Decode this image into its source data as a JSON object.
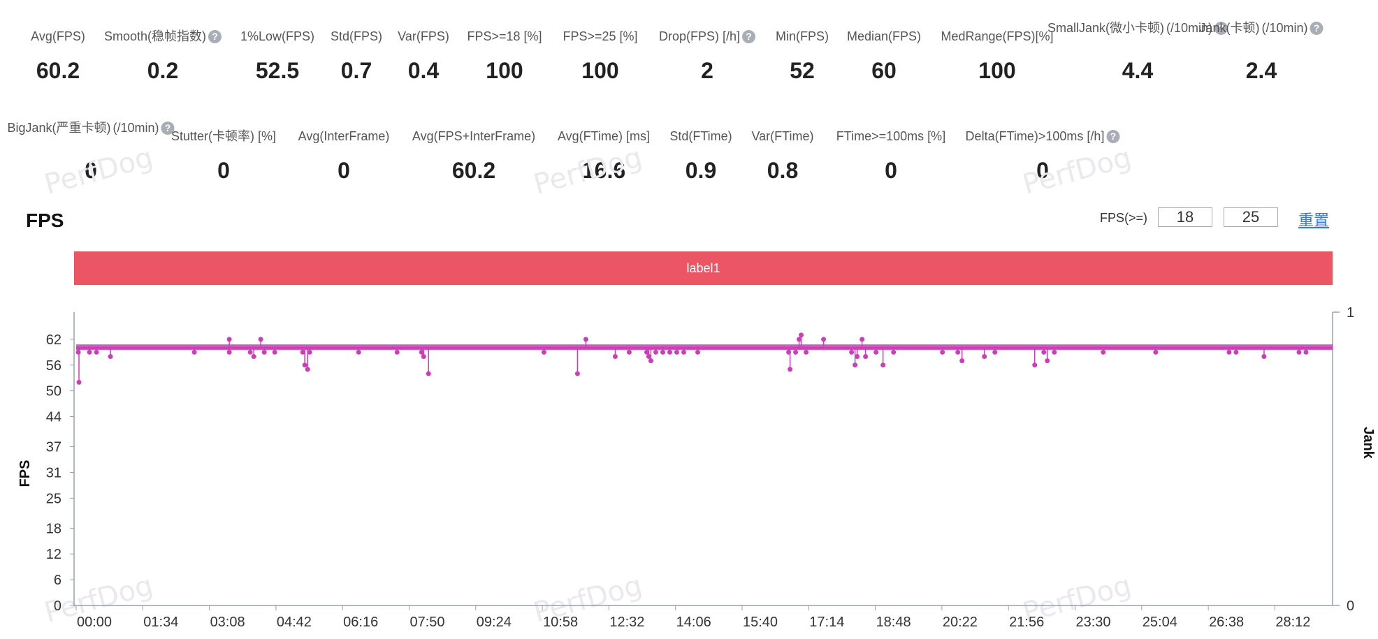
{
  "metrics_row1": [
    {
      "label": "Avg(FPS)",
      "value": "60.2",
      "help": false
    },
    {
      "label": "Smooth(稳帧指数)",
      "value": "0.2",
      "help": true
    },
    {
      "label": "1%Low(FPS)",
      "value": "52.5",
      "help": false
    },
    {
      "label": "Std(FPS)",
      "value": "0.7",
      "help": false
    },
    {
      "label": "Var(FPS)",
      "value": "0.4",
      "help": false
    },
    {
      "label": "FPS>=18 [%]",
      "value": "100",
      "help": false
    },
    {
      "label": "FPS>=25 [%]",
      "value": "100",
      "help": false
    },
    {
      "label": "Drop(FPS) [/h]",
      "value": "2",
      "help": true
    },
    {
      "label": "Min(FPS)",
      "value": "52",
      "help": false
    },
    {
      "label": "Median(FPS)",
      "value": "60",
      "help": false
    },
    {
      "label": "MedRange(FPS)[%]",
      "value": "100",
      "help": false
    },
    {
      "label": "SmallJank(微小卡顿)",
      "label2": "(/10min)",
      "value": "4.4",
      "help": true
    },
    {
      "label": "Jank(卡顿)",
      "label2": "(/10min)",
      "value": "2.4",
      "help": true
    }
  ],
  "metrics_row2": [
    {
      "label": "BigJank(严重卡顿)",
      "label2": "(/10min)",
      "value": "0",
      "help": true
    },
    {
      "label": "Stutter(卡顿率) [%]",
      "value": "0",
      "help": false
    },
    {
      "label": "Avg(InterFrame)",
      "value": "0",
      "help": false
    },
    {
      "label": "Avg(FPS+InterFrame)",
      "value": "60.2",
      "help": false
    },
    {
      "label": "Avg(FTime) [ms]",
      "value": "16.6",
      "help": false
    },
    {
      "label": "Std(FTime)",
      "value": "0.9",
      "help": false
    },
    {
      "label": "Var(FTime)",
      "value": "0.8",
      "help": false
    },
    {
      "label": "FTime>=100ms [%]",
      "value": "0",
      "help": false
    },
    {
      "label": "Delta(FTime)>100ms [/h]",
      "value": "0",
      "help": true
    }
  ],
  "help_glyph": "?",
  "watermark_text": "PerfDog",
  "section_title": "FPS",
  "threshold": {
    "label": "FPS(>=)",
    "value1": "18",
    "value2": "25",
    "reset_label": "重置"
  },
  "label_bar": {
    "text": "label1",
    "color": "#ec5564"
  },
  "chart_data": {
    "type": "line",
    "title": "FPS",
    "ylabel": "FPS",
    "y2label": "Jank",
    "yticks": [
      0,
      6,
      12,
      18,
      25,
      31,
      37,
      44,
      50,
      56,
      62
    ],
    "ylim": [
      0,
      68
    ],
    "y2ticks": [
      0,
      1
    ],
    "xticks": [
      "00:00",
      "01:34",
      "03:08",
      "04:42",
      "06:16",
      "07:50",
      "09:24",
      "10:58",
      "12:32",
      "14:06",
      "15:40",
      "17:14",
      "18:48",
      "20:22",
      "21:56",
      "23:30",
      "25:04",
      "26:38",
      "28:12"
    ],
    "xlim_seconds": [
      0,
      1800
    ],
    "baseline_fps": 60,
    "series_color": "#c940b4",
    "dips": [
      {
        "t": 5,
        "fps": 52
      },
      {
        "t": 4,
        "fps": 59
      },
      {
        "t": 20,
        "fps": 59
      },
      {
        "t": 30,
        "fps": 59
      },
      {
        "t": 50,
        "fps": 58
      },
      {
        "t": 170,
        "fps": 59
      },
      {
        "t": 220,
        "fps": 62
      },
      {
        "t": 220,
        "fps": 59
      },
      {
        "t": 250,
        "fps": 59
      },
      {
        "t": 255,
        "fps": 58
      },
      {
        "t": 265,
        "fps": 62
      },
      {
        "t": 270,
        "fps": 59
      },
      {
        "t": 285,
        "fps": 59
      },
      {
        "t": 325,
        "fps": 59
      },
      {
        "t": 328,
        "fps": 56
      },
      {
        "t": 332,
        "fps": 55
      },
      {
        "t": 335,
        "fps": 59
      },
      {
        "t": 405,
        "fps": 59
      },
      {
        "t": 460,
        "fps": 59
      },
      {
        "t": 495,
        "fps": 59
      },
      {
        "t": 498,
        "fps": 58
      },
      {
        "t": 505,
        "fps": 54
      },
      {
        "t": 670,
        "fps": 59
      },
      {
        "t": 718,
        "fps": 54
      },
      {
        "t": 730,
        "fps": 62
      },
      {
        "t": 772,
        "fps": 58
      },
      {
        "t": 792,
        "fps": 59
      },
      {
        "t": 817,
        "fps": 59
      },
      {
        "t": 820,
        "fps": 58
      },
      {
        "t": 823,
        "fps": 57
      },
      {
        "t": 830,
        "fps": 59
      },
      {
        "t": 840,
        "fps": 59
      },
      {
        "t": 850,
        "fps": 59
      },
      {
        "t": 860,
        "fps": 59
      },
      {
        "t": 870,
        "fps": 59
      },
      {
        "t": 890,
        "fps": 59
      },
      {
        "t": 1020,
        "fps": 59
      },
      {
        "t": 1022,
        "fps": 55
      },
      {
        "t": 1030,
        "fps": 59
      },
      {
        "t": 1035,
        "fps": 62
      },
      {
        "t": 1038,
        "fps": 63
      },
      {
        "t": 1045,
        "fps": 59
      },
      {
        "t": 1070,
        "fps": 62
      },
      {
        "t": 1110,
        "fps": 59
      },
      {
        "t": 1115,
        "fps": 56
      },
      {
        "t": 1118,
        "fps": 58
      },
      {
        "t": 1125,
        "fps": 62
      },
      {
        "t": 1130,
        "fps": 58
      },
      {
        "t": 1145,
        "fps": 59
      },
      {
        "t": 1155,
        "fps": 56
      },
      {
        "t": 1170,
        "fps": 59
      },
      {
        "t": 1240,
        "fps": 59
      },
      {
        "t": 1262,
        "fps": 59
      },
      {
        "t": 1268,
        "fps": 57
      },
      {
        "t": 1300,
        "fps": 58
      },
      {
        "t": 1315,
        "fps": 59
      },
      {
        "t": 1372,
        "fps": 56
      },
      {
        "t": 1385,
        "fps": 59
      },
      {
        "t": 1390,
        "fps": 57
      },
      {
        "t": 1400,
        "fps": 59
      },
      {
        "t": 1470,
        "fps": 59
      },
      {
        "t": 1545,
        "fps": 59
      },
      {
        "t": 1650,
        "fps": 59
      },
      {
        "t": 1660,
        "fps": 59
      },
      {
        "t": 1700,
        "fps": 58
      },
      {
        "t": 1750,
        "fps": 59
      },
      {
        "t": 1760,
        "fps": 59
      }
    ]
  }
}
